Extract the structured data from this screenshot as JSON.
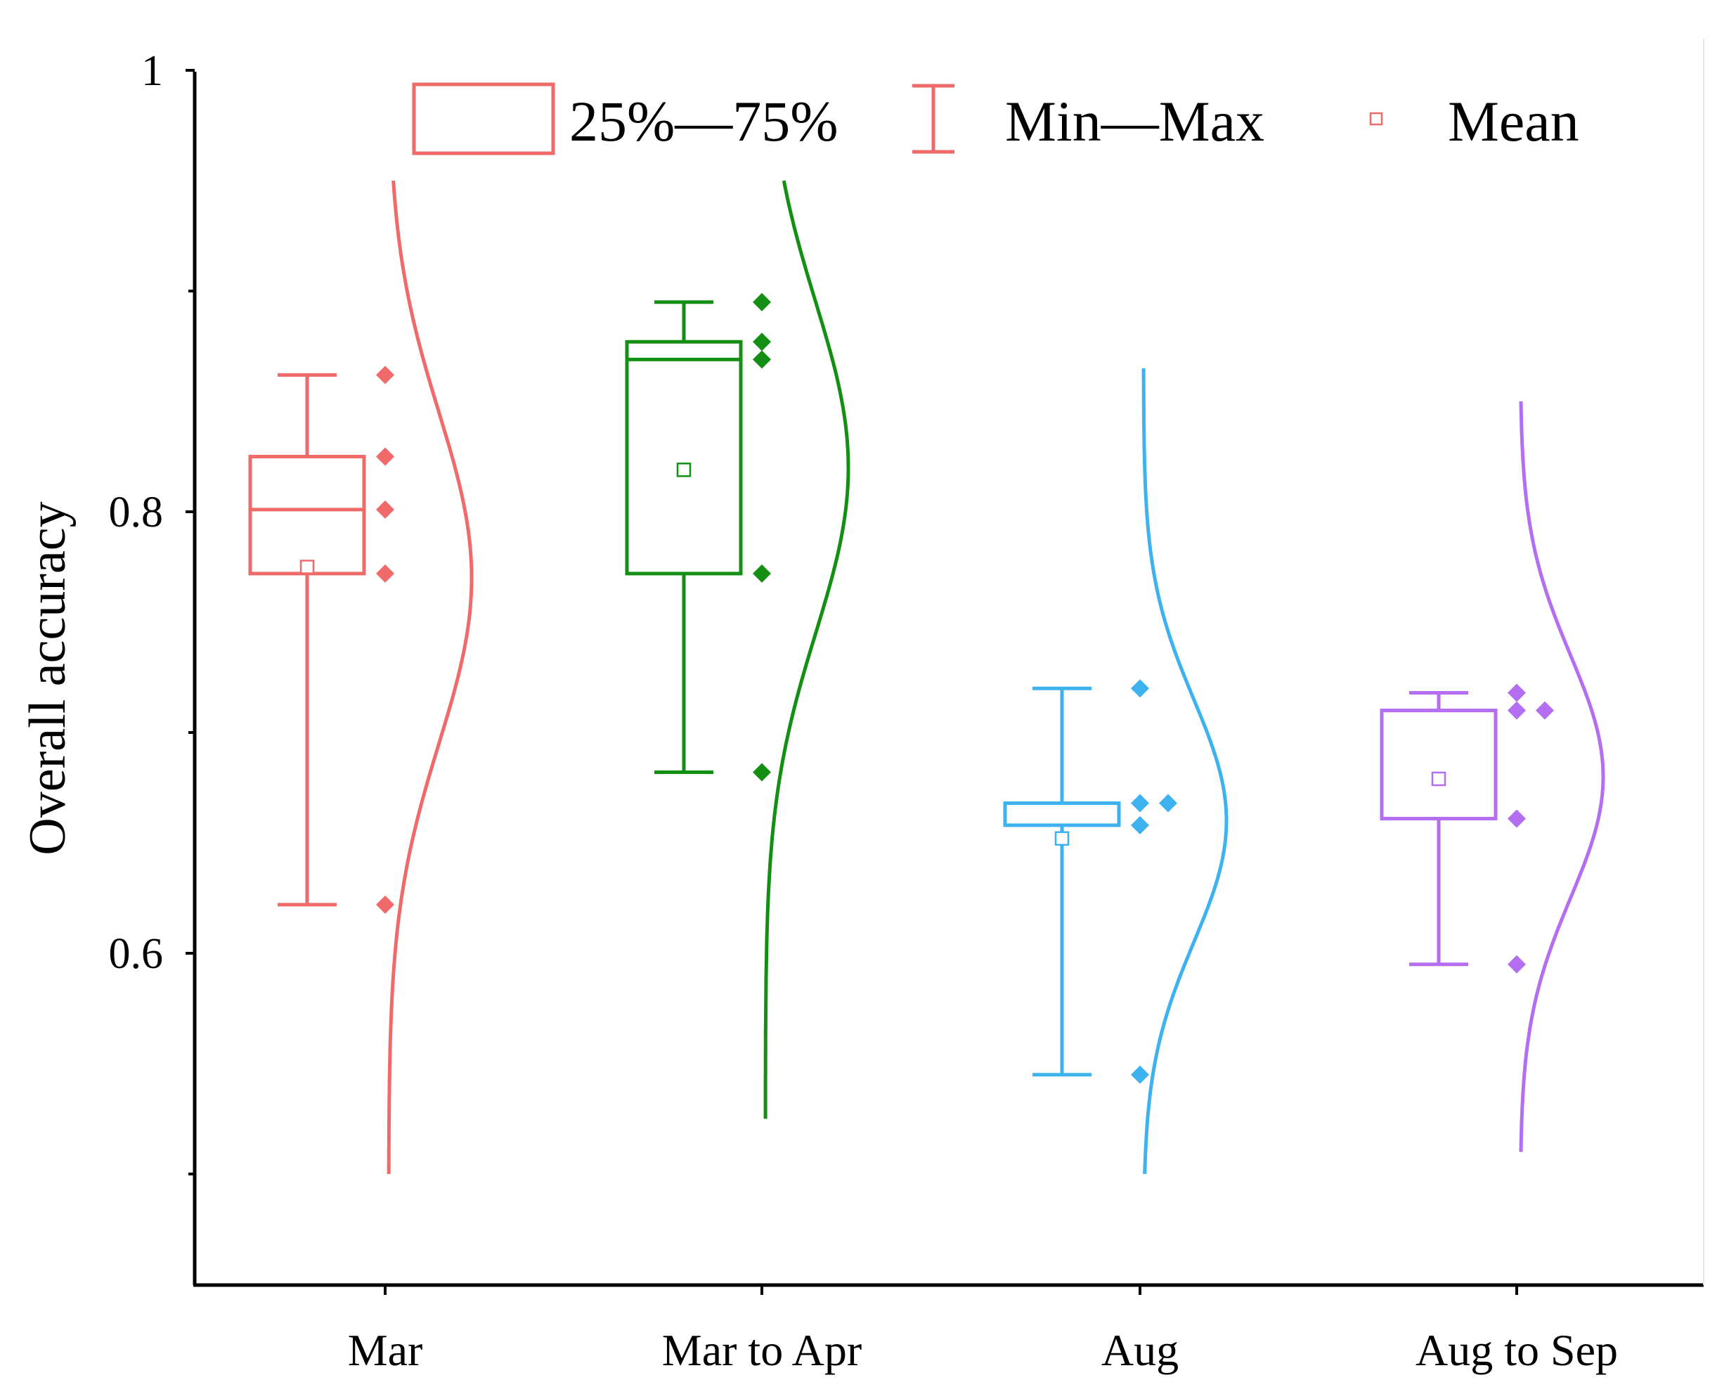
{
  "chart_data": {
    "type": "box-violin",
    "title": "",
    "xlabel": "",
    "ylabel": "Overall accuracy",
    "ylim": [
      0.45,
      1.0
    ],
    "yticks": [
      {
        "value": 1.0,
        "label": "1"
      },
      {
        "value": 0.8,
        "label": "0.8"
      },
      {
        "value": 0.6,
        "label": "0.6"
      }
    ],
    "yticks_minor": [
      0.9,
      0.7,
      0.5
    ],
    "legend": {
      "placement": "top",
      "items": [
        {
          "label": "25%—75%",
          "symbol": "box"
        },
        {
          "label": "Min—Max",
          "symbol": "whisker"
        },
        {
          "label": "Mean",
          "symbol": "mean-square"
        }
      ]
    },
    "categories": [
      "Mar",
      "Mar to Apr",
      "Aug",
      "Aug to Sep"
    ],
    "series": [
      {
        "name": "Mar",
        "color": "#f06a6a",
        "min": 0.622,
        "q1": 0.772,
        "median": 0.801,
        "q3": 0.825,
        "max": 0.862,
        "mean": 0.775,
        "points": [
          0.862,
          0.825,
          0.801,
          0.772,
          0.622
        ],
        "density": {
          "mu": 0.77,
          "sigma": 0.075,
          "range": [
            0.5,
            0.95
          ]
        }
      },
      {
        "name": "Mar to Apr",
        "color": "#138f13",
        "min": 0.682,
        "q1": 0.772,
        "median": 0.869,
        "q3": 0.877,
        "max": 0.895,
        "mean": 0.819,
        "points": [
          0.895,
          0.877,
          0.869,
          0.772,
          0.682
        ],
        "density": {
          "mu": 0.82,
          "sigma": 0.075,
          "range": [
            0.525,
            0.95
          ]
        }
      },
      {
        "name": "Aug",
        "color": "#3db2ef",
        "min": 0.545,
        "q1": 0.658,
        "median": 0.668,
        "q3": 0.668,
        "max": 0.72,
        "mean": 0.652,
        "points": [
          0.72,
          0.668,
          0.668,
          0.658,
          0.545
        ],
        "density": {
          "mu": 0.66,
          "sigma": 0.055,
          "range": [
            0.5,
            0.865
          ]
        }
      },
      {
        "name": "Aug to Sep",
        "color": "#b36ef2",
        "min": 0.595,
        "q1": 0.661,
        "median": 0.71,
        "q3": 0.71,
        "max": 0.718,
        "mean": 0.679,
        "points": [
          0.71,
          0.71,
          0.718,
          0.661,
          0.595
        ],
        "density": {
          "mu": 0.68,
          "sigma": 0.055,
          "range": [
            0.51,
            0.85
          ]
        }
      }
    ]
  }
}
